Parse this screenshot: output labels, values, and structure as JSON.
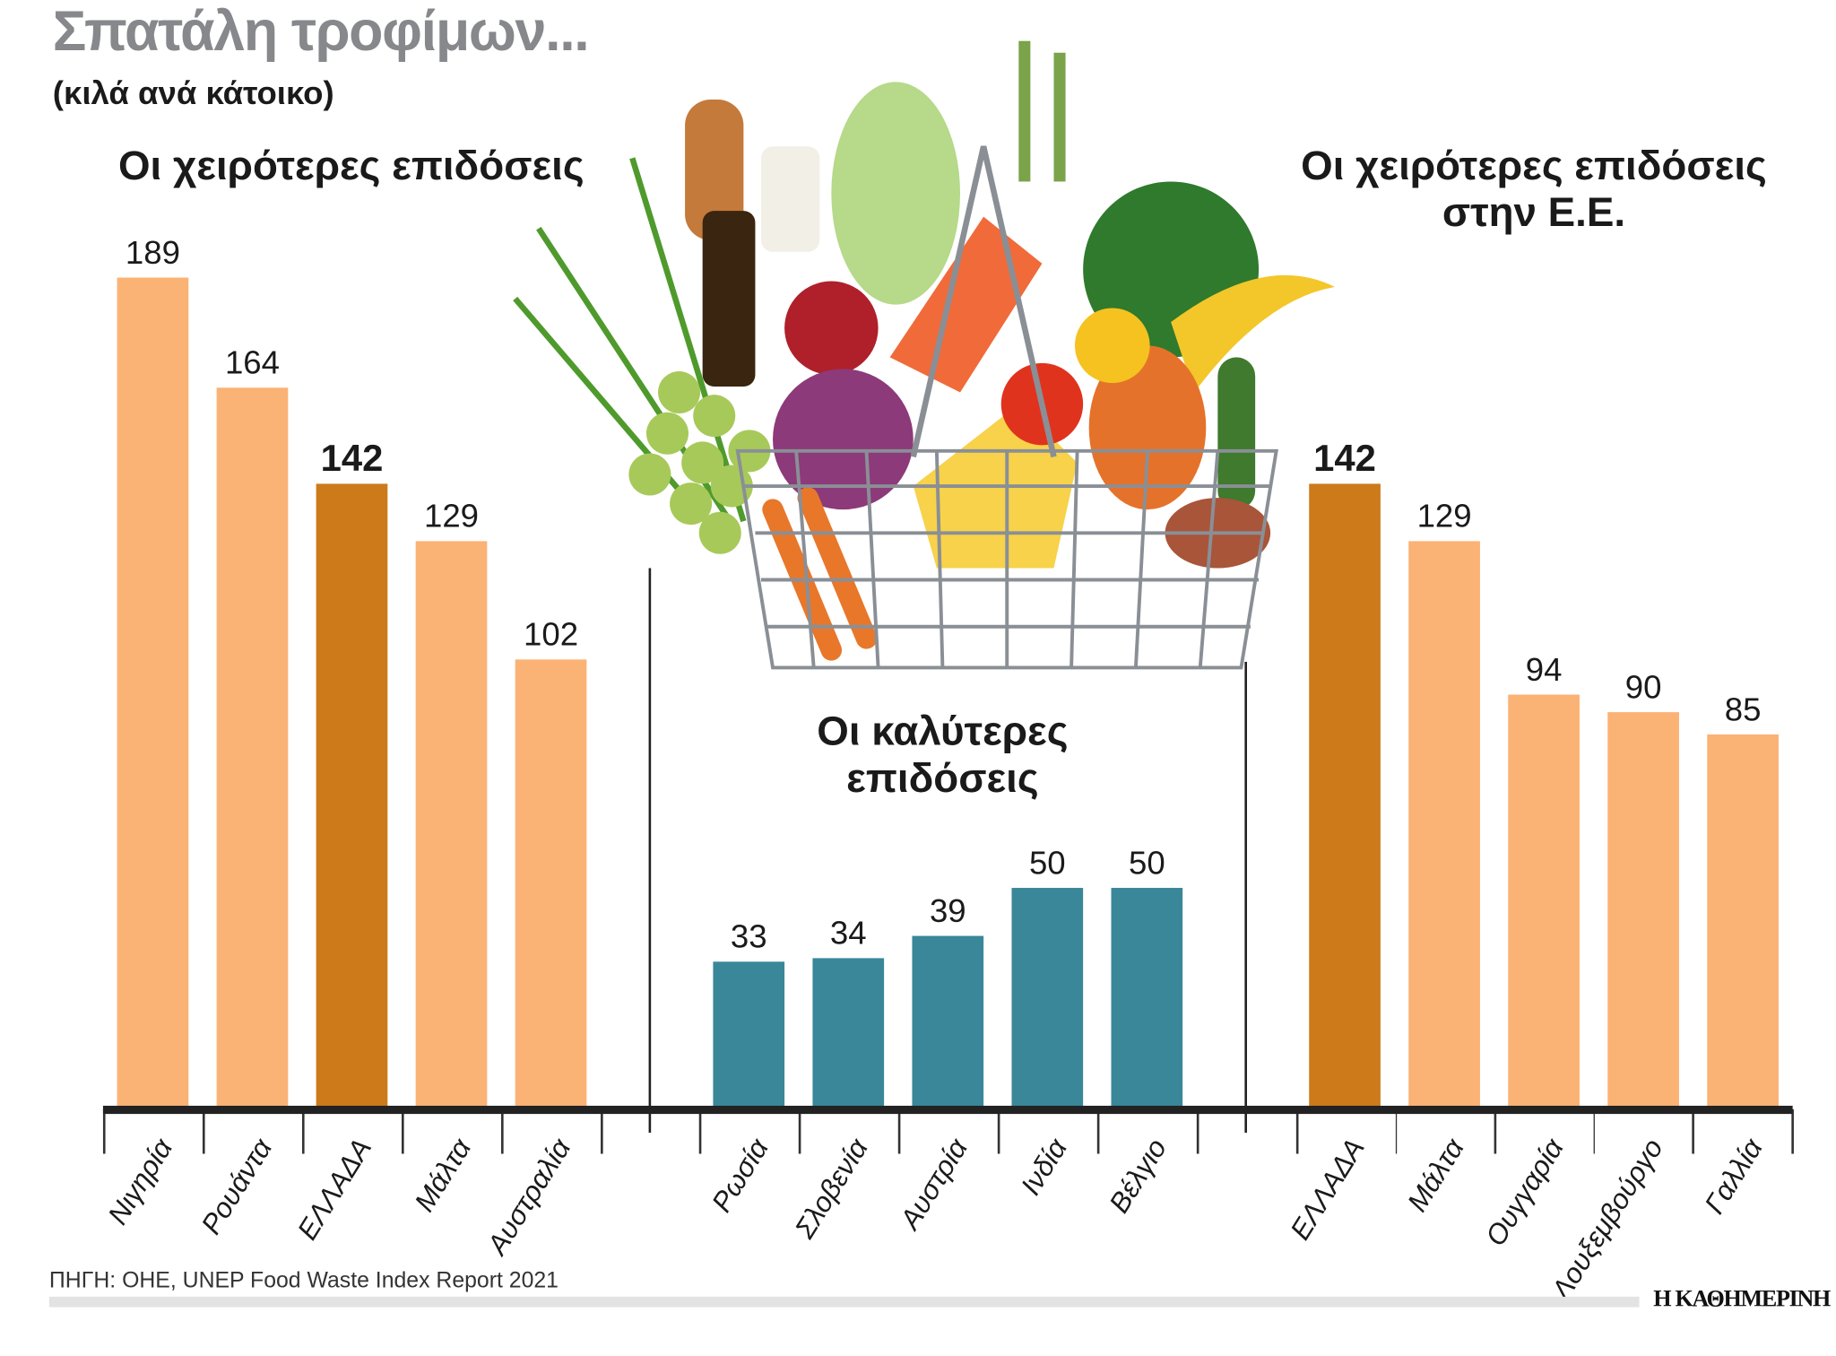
{
  "title": "Σπατάλη τροφίμων...",
  "subtitle": "(κιλά ανά κάτοικο)",
  "source": "ΠΗΓΗ: ΟΗΕ, UNEP Food Waste Index Report 2021",
  "logo": "Η ΚΑΘΗΜΕΡΙΝΗ",
  "colors": {
    "light_orange": "#FBB275",
    "dark_orange": "#CC7A1A",
    "teal": "#3A8799"
  },
  "illustration": "basket-of-groceries",
  "chart_data": [
    {
      "type": "bar",
      "title": "Οι χειρότερες επιδόσεις",
      "categories": [
        "Νιγηρία",
        "Ρουάντα",
        "ΕΛΛΑΔΑ",
        "Μάλτα",
        "Αυστραλία"
      ],
      "values": [
        189,
        164,
        142,
        129,
        102
      ],
      "highlight": "ΕΛΛΑΔΑ",
      "ylim": [
        0,
        189
      ]
    },
    {
      "type": "bar",
      "title": "Οι καλύτερες επιδόσεις",
      "categories": [
        "Ρωσία",
        "Σλοβενία",
        "Αυστρία",
        "Ινδία",
        "Βέλγιο"
      ],
      "values": [
        33,
        34,
        39,
        50,
        50
      ],
      "ylim": [
        0,
        189
      ]
    },
    {
      "type": "bar",
      "title": "Οι χειρότερες επιδόσεις στην Ε.Ε.",
      "title_lines": [
        "Οι χειρότερες επιδόσεις",
        "στην Ε.Ε."
      ],
      "categories": [
        "ΕΛΛΑΔΑ",
        "Μάλτα",
        "Ουγγαρία",
        "Λουξεμβούργο",
        "Γαλλία"
      ],
      "values": [
        142,
        129,
        94,
        90,
        85
      ],
      "highlight": "ΕΛΛΑΔΑ",
      "ylim": [
        0,
        189
      ]
    }
  ]
}
